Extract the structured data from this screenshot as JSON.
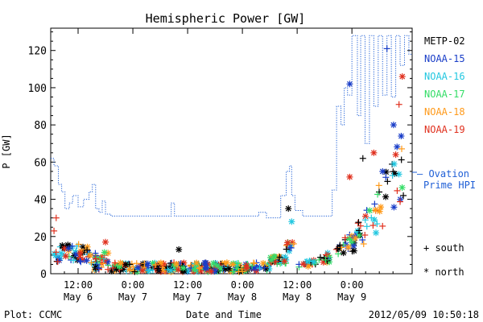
{
  "chart_data": {
    "type": "scatter",
    "title": "Hemispheric Power [GW]",
    "ylabel": "P [GW]",
    "xlabel": "Date and Time",
    "ylim": [
      0,
      132
    ],
    "xlim": [
      -0.25,
      3.05
    ],
    "grid": false,
    "legend_placement": "right",
    "yticks": [
      0,
      20,
      40,
      60,
      80,
      100,
      120
    ],
    "xticks": [
      {
        "pos": 0,
        "time": "12:00",
        "date": "May 6"
      },
      {
        "pos": 0.5,
        "time": "0:00",
        "date": "May 7"
      },
      {
        "pos": 1,
        "time": "12:00",
        "date": "May 7"
      },
      {
        "pos": 1.5,
        "time": "0:00",
        "date": "May 8"
      },
      {
        "pos": 2,
        "time": "12:00",
        "date": "May 8"
      },
      {
        "pos": 2.5,
        "time": "0:00",
        "date": "May 9"
      }
    ],
    "ovation": {
      "label_line1": "— Ovation",
      "label_line2": "Prime HPI",
      "color": "#1f5fd6",
      "x": [
        -0.25,
        -0.22,
        -0.18,
        -0.15,
        -0.12,
        -0.08,
        -0.05,
        0.0,
        0.05,
        0.1,
        0.13,
        0.16,
        0.19,
        0.22,
        0.25,
        0.3,
        0.36,
        0.42,
        0.5,
        0.6,
        0.7,
        0.8,
        0.85,
        0.88,
        0.95,
        1.05,
        1.15,
        1.25,
        1.35,
        1.45,
        1.55,
        1.65,
        1.72,
        1.8,
        1.85,
        1.9,
        1.93,
        1.95,
        1.98,
        2.05,
        2.15,
        2.2,
        2.25,
        2.3,
        2.32,
        2.36,
        2.4,
        2.43,
        2.46,
        2.5,
        2.55,
        2.58,
        2.62,
        2.66,
        2.7,
        2.74,
        2.78,
        2.82,
        2.86,
        2.9,
        2.94,
        2.98,
        3.02,
        3.05
      ],
      "y": [
        62,
        58,
        48,
        44,
        35,
        38,
        42,
        36,
        40,
        44,
        48,
        35,
        33,
        39,
        32,
        31,
        31,
        31,
        31,
        31,
        31,
        31,
        38,
        31,
        31,
        31,
        31,
        31,
        31,
        31,
        31,
        33,
        30,
        30,
        42,
        55,
        58,
        42,
        34,
        31,
        31,
        31,
        31,
        31,
        45,
        90,
        80,
        100,
        96,
        128,
        85,
        128,
        70,
        128,
        90,
        128,
        96,
        128,
        95,
        128,
        112,
        128,
        118,
        118
      ]
    },
    "series": [
      {
        "name": "METP-02",
        "color": "#000000"
      },
      {
        "name": "NOAA-15",
        "color": "#1a3ec8"
      },
      {
        "name": "NOAA-16",
        "color": "#22c7e0"
      },
      {
        "name": "NOAA-17",
        "color": "#33dd66"
      },
      {
        "name": "NOAA-18",
        "color": "#ff9a1a"
      },
      {
        "name": "NOAA-19",
        "color": "#e0301e"
      }
    ],
    "marker_legend": {
      "south": "+ south",
      "north": "* north"
    }
  },
  "footer": {
    "left": "Plot: CCMC",
    "center": "Date and Time",
    "right": "2012/05/09 10:50:18"
  }
}
